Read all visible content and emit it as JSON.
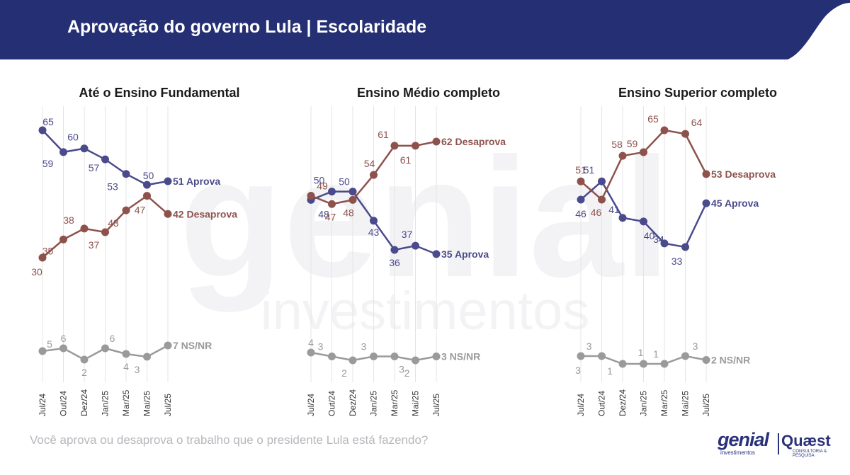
{
  "header": {
    "title": "Aprovação do governo Lula | Escolaridade"
  },
  "question": "Você aprova ou desaprova o trabalho que o presidente Lula está fazendo?",
  "logos": {
    "genial": "genial",
    "genial_sub": "investimentos",
    "quaest": "Quæst",
    "quaest_sub": "CONSULTORIA & PESQUISA"
  },
  "watermark": {
    "top": "genial",
    "bottom": "investimentos"
  },
  "colors": {
    "header_bg": "#252f73",
    "aprova": "#4a4a8c",
    "desaprova": "#8e524d",
    "nsnr": "#9a9a9a",
    "grid": "#e4e4e4"
  },
  "chart_data": [
    {
      "type": "line",
      "title": "Até o Ensino Fundamental",
      "categories": [
        "Jul/24",
        "Out/24",
        "Dez/24",
        "Jan/25",
        "Mar/25",
        "Mai/25",
        "Jul/25"
      ],
      "series": [
        {
          "name": "Aprova",
          "end_label": "51 Aprova",
          "values": [
            65,
            59,
            60,
            57,
            53,
            50,
            51
          ],
          "labels": [
            "65",
            "59",
            "60",
            "57",
            "53",
            "50",
            ""
          ]
        },
        {
          "name": "Desaprova",
          "end_label": "42 Desaprova",
          "values": [
            30,
            35,
            38,
            37,
            43,
            47,
            42
          ],
          "labels": [
            "30",
            "35",
            "38",
            "37",
            "43",
            "47",
            ""
          ]
        },
        {
          "name": "NS/NR",
          "end_label": "7 NS/NR",
          "values": [
            5,
            6,
            2,
            6,
            4,
            3,
            7
          ],
          "labels": [
            "5",
            "6",
            "2",
            "6",
            "4",
            "3",
            ""
          ]
        }
      ]
    },
    {
      "type": "line",
      "title": "Ensino Médio completo",
      "categories": [
        "Jul/24",
        "Out/24",
        "Dez/24",
        "Jan/25",
        "Mar/25",
        "Mai/25",
        "Jul/25"
      ],
      "series": [
        {
          "name": "Aprova",
          "end_label": "35 Aprova",
          "values": [
            48,
            50,
            50,
            43,
            36,
            37,
            35
          ],
          "labels": [
            "48",
            "50",
            "50",
            "43",
            "36",
            "37",
            ""
          ]
        },
        {
          "name": "Desaprova",
          "end_label": "62 Desaprova",
          "values": [
            49,
            47,
            48,
            54,
            61,
            61,
            62
          ],
          "labels": [
            "49",
            "47",
            "48",
            "54",
            "61",
            "61",
            ""
          ]
        },
        {
          "name": "NS/NR",
          "end_label": "3 NS/NR",
          "values": [
            4,
            3,
            2,
            3,
            3,
            2,
            3
          ],
          "labels": [
            "4",
            "3",
            "2",
            "3",
            "3",
            "2",
            ""
          ]
        }
      ]
    },
    {
      "type": "line",
      "title": "Ensino Superior completo",
      "categories": [
        "Jul/24",
        "Out/24",
        "Dez/24",
        "Jan/25",
        "Mar/25",
        "Mai/25",
        "Jul/25"
      ],
      "series": [
        {
          "name": "Aprova",
          "end_label": "45 Aprova",
          "values": [
            46,
            51,
            41,
            40,
            34,
            33,
            45
          ],
          "labels": [
            "46",
            "51",
            "41",
            "40",
            "34",
            "33",
            ""
          ]
        },
        {
          "name": "Desaprova",
          "end_label": "53 Desaprova",
          "values": [
            51,
            46,
            58,
            59,
            65,
            64,
            53
          ],
          "labels": [
            "51",
            "46",
            "58",
            "59",
            "65",
            "64",
            ""
          ]
        },
        {
          "name": "NS/NR",
          "end_label": "2 NS/NR",
          "values": [
            3,
            3,
            1,
            1,
            1,
            3,
            2
          ],
          "labels": [
            "3",
            "3",
            "1",
            "1",
            "1",
            "3",
            ""
          ]
        }
      ]
    }
  ]
}
